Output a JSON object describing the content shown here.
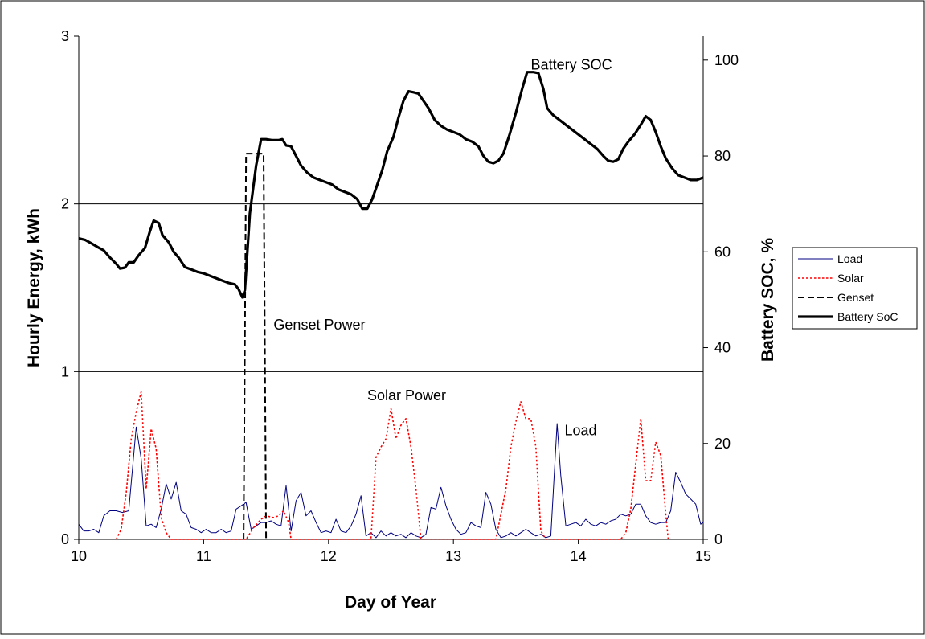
{
  "chart_data": {
    "type": "line",
    "xlabel": "Day of Year",
    "ylabel_left": "Hourly Energy, kWh",
    "ylabel_right": "Battery SOC, %",
    "xlim": [
      10,
      15
    ],
    "ylim_left": [
      0,
      3
    ],
    "ylim_right": [
      0,
      105
    ],
    "x_ticks": [
      "10",
      "11",
      "12",
      "13",
      "14",
      "15"
    ],
    "y_left_ticks": [
      "0",
      "1",
      "2",
      "3"
    ],
    "y_right_ticks": [
      "0",
      "20",
      "40",
      "60",
      "80",
      "100"
    ],
    "grid": "horizontal major lines at 1 and 2 kWh",
    "legend_position": "right",
    "legend": [
      "Load",
      "Solar",
      "Genset",
      "Battery SoC"
    ],
    "annotations": [
      {
        "text": "Battery SOC",
        "x": 13.62,
        "y_soc": 98
      },
      {
        "text": "Genset Power",
        "x": 11.56,
        "y_kwh": 1.25
      },
      {
        "text": "Solar Power",
        "x": 12.31,
        "y_kwh": 0.83
      },
      {
        "text": "Load",
        "x": 13.89,
        "y_kwh": 0.62
      }
    ],
    "series": [
      {
        "name": "Load",
        "axis": "left",
        "color": "#000080",
        "style": "solid-thin",
        "points": [
          [
            10.0,
            0.09
          ],
          [
            10.04,
            0.05
          ],
          [
            10.08,
            0.05
          ],
          [
            10.12,
            0.06
          ],
          [
            10.16,
            0.04
          ],
          [
            10.2,
            0.14
          ],
          [
            10.25,
            0.17
          ],
          [
            10.3,
            0.17
          ],
          [
            10.35,
            0.16
          ],
          [
            10.4,
            0.17
          ],
          [
            10.46,
            0.67
          ],
          [
            10.5,
            0.48
          ],
          [
            10.54,
            0.08
          ],
          [
            10.58,
            0.09
          ],
          [
            10.62,
            0.07
          ],
          [
            10.66,
            0.18
          ],
          [
            10.7,
            0.33
          ],
          [
            10.74,
            0.24
          ],
          [
            10.78,
            0.34
          ],
          [
            10.82,
            0.17
          ],
          [
            10.86,
            0.15
          ],
          [
            10.9,
            0.07
          ],
          [
            10.94,
            0.06
          ],
          [
            10.98,
            0.04
          ],
          [
            11.02,
            0.06
          ],
          [
            11.06,
            0.04
          ],
          [
            11.1,
            0.04
          ],
          [
            11.14,
            0.06
          ],
          [
            11.18,
            0.04
          ],
          [
            11.22,
            0.05
          ],
          [
            11.26,
            0.18
          ],
          [
            11.3,
            0.2
          ],
          [
            11.34,
            0.22
          ],
          [
            11.38,
            0.06
          ],
          [
            11.42,
            0.08
          ],
          [
            11.46,
            0.1
          ],
          [
            11.5,
            0.1
          ],
          [
            11.54,
            0.11
          ],
          [
            11.58,
            0.09
          ],
          [
            11.62,
            0.08
          ],
          [
            11.66,
            0.32
          ],
          [
            11.7,
            0.05
          ],
          [
            11.74,
            0.23
          ],
          [
            11.78,
            0.28
          ],
          [
            11.82,
            0.14
          ],
          [
            11.86,
            0.17
          ],
          [
            11.9,
            0.1
          ],
          [
            11.94,
            0.04
          ],
          [
            11.98,
            0.05
          ],
          [
            12.02,
            0.04
          ],
          [
            12.06,
            0.12
          ],
          [
            12.1,
            0.05
          ],
          [
            12.14,
            0.04
          ],
          [
            12.18,
            0.08
          ],
          [
            12.22,
            0.15
          ],
          [
            12.26,
            0.26
          ],
          [
            12.3,
            0.02
          ],
          [
            12.34,
            0.04
          ],
          [
            12.38,
            0.01
          ],
          [
            12.42,
            0.05
          ],
          [
            12.46,
            0.02
          ],
          [
            12.5,
            0.04
          ],
          [
            12.54,
            0.02
          ],
          [
            12.58,
            0.03
          ],
          [
            12.62,
            0.01
          ],
          [
            12.66,
            0.04
          ],
          [
            12.7,
            0.02
          ],
          [
            12.74,
            0.01
          ],
          [
            12.78,
            0.03
          ],
          [
            12.82,
            0.19
          ],
          [
            12.86,
            0.18
          ],
          [
            12.9,
            0.31
          ],
          [
            12.94,
            0.2
          ],
          [
            12.98,
            0.12
          ],
          [
            13.02,
            0.06
          ],
          [
            13.06,
            0.03
          ],
          [
            13.1,
            0.04
          ],
          [
            13.14,
            0.1
          ],
          [
            13.18,
            0.08
          ],
          [
            13.22,
            0.07
          ],
          [
            13.26,
            0.28
          ],
          [
            13.3,
            0.21
          ],
          [
            13.34,
            0.06
          ],
          [
            13.38,
            0.01
          ],
          [
            13.42,
            0.02
          ],
          [
            13.46,
            0.04
          ],
          [
            13.5,
            0.02
          ],
          [
            13.54,
            0.04
          ],
          [
            13.58,
            0.06
          ],
          [
            13.62,
            0.04
          ],
          [
            13.66,
            0.02
          ],
          [
            13.7,
            0.03
          ],
          [
            13.74,
            0.01
          ],
          [
            13.78,
            0.02
          ],
          [
            13.83,
            0.69
          ],
          [
            13.86,
            0.38
          ],
          [
            13.9,
            0.08
          ],
          [
            13.94,
            0.09
          ],
          [
            13.98,
            0.1
          ],
          [
            14.02,
            0.08
          ],
          [
            14.06,
            0.12
          ],
          [
            14.1,
            0.09
          ],
          [
            14.14,
            0.08
          ],
          [
            14.18,
            0.1
          ],
          [
            14.22,
            0.09
          ],
          [
            14.26,
            0.11
          ],
          [
            14.3,
            0.12
          ],
          [
            14.34,
            0.15
          ],
          [
            14.38,
            0.14
          ],
          [
            14.42,
            0.15
          ],
          [
            14.46,
            0.21
          ],
          [
            14.5,
            0.21
          ],
          [
            14.54,
            0.14
          ],
          [
            14.58,
            0.1
          ],
          [
            14.62,
            0.09
          ],
          [
            14.66,
            0.1
          ],
          [
            14.7,
            0.1
          ],
          [
            14.74,
            0.17
          ],
          [
            14.78,
            0.4
          ],
          [
            14.82,
            0.34
          ],
          [
            14.86,
            0.27
          ],
          [
            14.9,
            0.24
          ],
          [
            14.94,
            0.21
          ],
          [
            14.98,
            0.09
          ],
          [
            15.0,
            0.1
          ]
        ]
      },
      {
        "name": "Solar",
        "axis": "left",
        "color": "#ff0000",
        "style": "dotted",
        "points": [
          [
            10.3,
            0.0
          ],
          [
            10.34,
            0.06
          ],
          [
            10.38,
            0.28
          ],
          [
            10.42,
            0.6
          ],
          [
            10.46,
            0.76
          ],
          [
            10.5,
            0.88
          ],
          [
            10.54,
            0.3
          ],
          [
            10.58,
            0.66
          ],
          [
            10.62,
            0.54
          ],
          [
            10.66,
            0.13
          ],
          [
            10.7,
            0.04
          ],
          [
            10.74,
            0.0
          ],
          [
            11.34,
            0.0
          ],
          [
            11.4,
            0.07
          ],
          [
            11.46,
            0.12
          ],
          [
            11.5,
            0.14
          ],
          [
            11.56,
            0.13
          ],
          [
            11.6,
            0.14
          ],
          [
            11.64,
            0.17
          ],
          [
            11.68,
            0.1
          ],
          [
            11.7,
            0.0
          ],
          [
            12.34,
            0.0
          ],
          [
            12.38,
            0.49
          ],
          [
            12.42,
            0.55
          ],
          [
            12.46,
            0.6
          ],
          [
            12.5,
            0.78
          ],
          [
            12.54,
            0.6
          ],
          [
            12.58,
            0.68
          ],
          [
            12.62,
            0.72
          ],
          [
            12.66,
            0.55
          ],
          [
            12.7,
            0.3
          ],
          [
            12.74,
            0.0
          ],
          [
            13.34,
            0.0
          ],
          [
            13.38,
            0.15
          ],
          [
            13.42,
            0.3
          ],
          [
            13.46,
            0.55
          ],
          [
            13.5,
            0.7
          ],
          [
            13.54,
            0.82
          ],
          [
            13.58,
            0.72
          ],
          [
            13.62,
            0.72
          ],
          [
            13.66,
            0.55
          ],
          [
            13.7,
            0.05
          ],
          [
            13.74,
            0.0
          ],
          [
            14.34,
            0.0
          ],
          [
            14.38,
            0.04
          ],
          [
            14.42,
            0.18
          ],
          [
            14.46,
            0.45
          ],
          [
            14.5,
            0.72
          ],
          [
            14.54,
            0.35
          ],
          [
            14.58,
            0.35
          ],
          [
            14.62,
            0.58
          ],
          [
            14.66,
            0.5
          ],
          [
            14.7,
            0.15
          ],
          [
            14.72,
            0.0
          ]
        ]
      },
      {
        "name": "Genset",
        "axis": "left",
        "color": "#000000",
        "style": "dashed",
        "points": [
          [
            11.32,
            0.0
          ],
          [
            11.34,
            2.3
          ],
          [
            11.48,
            2.3
          ],
          [
            11.5,
            0.0
          ]
        ]
      },
      {
        "name": "Battery SoC",
        "axis": "right",
        "color": "#000000",
        "style": "solid-thick",
        "points": [
          [
            10.0,
            62.8
          ],
          [
            10.05,
            62.5
          ],
          [
            10.1,
            61.8
          ],
          [
            10.15,
            61.0
          ],
          [
            10.2,
            60.3
          ],
          [
            10.25,
            58.8
          ],
          [
            10.3,
            57.5
          ],
          [
            10.33,
            56.5
          ],
          [
            10.37,
            56.7
          ],
          [
            10.4,
            57.8
          ],
          [
            10.44,
            57.8
          ],
          [
            10.48,
            59.3
          ],
          [
            10.53,
            60.8
          ],
          [
            10.57,
            64.3
          ],
          [
            10.6,
            66.5
          ],
          [
            10.64,
            66.0
          ],
          [
            10.67,
            63.5
          ],
          [
            10.72,
            62.0
          ],
          [
            10.76,
            60.0
          ],
          [
            10.8,
            58.8
          ],
          [
            10.85,
            56.8
          ],
          [
            10.9,
            56.3
          ],
          [
            10.95,
            55.8
          ],
          [
            11.0,
            55.5
          ],
          [
            11.05,
            55.0
          ],
          [
            11.1,
            54.5
          ],
          [
            11.15,
            54.0
          ],
          [
            11.2,
            53.5
          ],
          [
            11.25,
            53.2
          ],
          [
            11.28,
            52.2
          ],
          [
            11.31,
            50.5
          ],
          [
            11.33,
            52.0
          ],
          [
            11.37,
            68.0
          ],
          [
            11.42,
            78.0
          ],
          [
            11.46,
            83.5
          ],
          [
            11.5,
            83.5
          ],
          [
            11.55,
            83.3
          ],
          [
            11.6,
            83.3
          ],
          [
            11.63,
            83.5
          ],
          [
            11.66,
            82.2
          ],
          [
            11.7,
            82.0
          ],
          [
            11.74,
            80.0
          ],
          [
            11.78,
            78.0
          ],
          [
            11.83,
            76.5
          ],
          [
            11.88,
            75.5
          ],
          [
            11.93,
            75.0
          ],
          [
            11.98,
            74.5
          ],
          [
            12.03,
            74.0
          ],
          [
            12.08,
            73.0
          ],
          [
            12.13,
            72.5
          ],
          [
            12.18,
            72.0
          ],
          [
            12.23,
            71.0
          ],
          [
            12.27,
            69.0
          ],
          [
            12.31,
            69.0
          ],
          [
            12.35,
            71.0
          ],
          [
            12.39,
            74.0
          ],
          [
            12.43,
            77.0
          ],
          [
            12.47,
            81.0
          ],
          [
            12.52,
            84.0
          ],
          [
            12.56,
            88.0
          ],
          [
            12.6,
            91.5
          ],
          [
            12.64,
            93.5
          ],
          [
            12.68,
            93.3
          ],
          [
            12.72,
            93.0
          ],
          [
            12.76,
            91.5
          ],
          [
            12.8,
            90.0
          ],
          [
            12.85,
            87.5
          ],
          [
            12.9,
            86.3
          ],
          [
            12.95,
            85.5
          ],
          [
            13.0,
            85.0
          ],
          [
            13.05,
            84.5
          ],
          [
            13.1,
            83.5
          ],
          [
            13.15,
            83.0
          ],
          [
            13.2,
            82.0
          ],
          [
            13.24,
            80.0
          ],
          [
            13.28,
            78.8
          ],
          [
            13.32,
            78.5
          ],
          [
            13.36,
            79.0
          ],
          [
            13.4,
            80.5
          ],
          [
            13.45,
            84.5
          ],
          [
            13.5,
            89.0
          ],
          [
            13.55,
            94.0
          ],
          [
            13.59,
            97.5
          ],
          [
            13.64,
            97.5
          ],
          [
            13.68,
            97.3
          ],
          [
            13.72,
            94.0
          ],
          [
            13.75,
            90.0
          ],
          [
            13.8,
            88.5
          ],
          [
            13.85,
            87.5
          ],
          [
            13.9,
            86.5
          ],
          [
            13.95,
            85.5
          ],
          [
            14.0,
            84.5
          ],
          [
            14.05,
            83.5
          ],
          [
            14.1,
            82.5
          ],
          [
            14.15,
            81.5
          ],
          [
            14.2,
            80.0
          ],
          [
            14.24,
            79.0
          ],
          [
            14.28,
            78.8
          ],
          [
            14.32,
            79.3
          ],
          [
            14.36,
            81.5
          ],
          [
            14.4,
            83.0
          ],
          [
            14.45,
            84.5
          ],
          [
            14.5,
            86.5
          ],
          [
            14.54,
            88.3
          ],
          [
            14.58,
            87.5
          ],
          [
            14.62,
            85.0
          ],
          [
            14.66,
            82.0
          ],
          [
            14.7,
            79.5
          ],
          [
            14.75,
            77.5
          ],
          [
            14.8,
            76.0
          ],
          [
            14.85,
            75.5
          ],
          [
            14.9,
            75.0
          ],
          [
            14.95,
            75.0
          ],
          [
            15.0,
            75.5
          ]
        ]
      }
    ]
  }
}
